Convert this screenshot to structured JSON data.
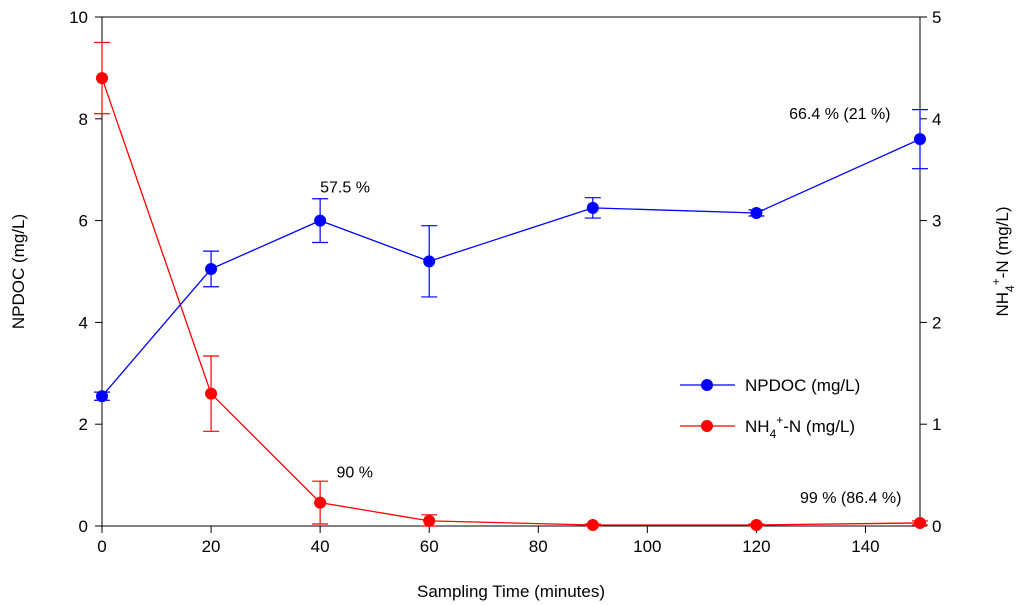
{
  "chart_data": {
    "type": "line",
    "xlabel": "Sampling Time (minutes)",
    "ylabel_left": "NPDOC (mg/L)",
    "ylabel_right": {
      "main": "NH",
      "sub": "4",
      "sup": "+",
      "rest": "-N (mg/L)"
    },
    "xlim": [
      0,
      150
    ],
    "ylim_left": [
      0,
      10
    ],
    "ylim_right": [
      0,
      5
    ],
    "x_ticks": [
      0,
      20,
      40,
      60,
      80,
      100,
      120,
      140
    ],
    "y_ticks_left": [
      0,
      2,
      4,
      6,
      8,
      10
    ],
    "y_ticks_right": [
      0,
      1,
      2,
      3,
      4,
      5
    ],
    "grid": false,
    "legend_position": "right-lower",
    "series": [
      {
        "name": "NPDOC (mg/L)",
        "axis": "left",
        "color": "#0000ff",
        "x": [
          0,
          20,
          40,
          60,
          90,
          120,
          150
        ],
        "y": [
          2.55,
          5.05,
          6.0,
          5.2,
          6.25,
          6.15,
          7.6
        ],
        "err": [
          0.08,
          0.35,
          0.43,
          0.7,
          0.2,
          0.06,
          0.58
        ]
      },
      {
        "name": "NH4+-N (mg/L)",
        "legend": {
          "main": "NH",
          "sub": "4",
          "sup": "+",
          "rest": "-N (mg/L)"
        },
        "axis": "right",
        "color": "#ff0000",
        "x": [
          0,
          20,
          40,
          60,
          90,
          120,
          150
        ],
        "y": [
          4.4,
          1.3,
          0.23,
          0.05,
          0.01,
          0.01,
          0.03
        ],
        "err": [
          0.35,
          0.37,
          0.21,
          0.06,
          0.01,
          0.01,
          0.02
        ]
      }
    ],
    "annotations": [
      {
        "text": "57.5 %",
        "x": 40,
        "y": 6.55,
        "axis": "left"
      },
      {
        "text": "66.4 % (21 %)",
        "x": 126,
        "y": 8.0,
        "axis": "left"
      },
      {
        "text": "90 %",
        "x": 43,
        "y": 0.95,
        "axis": "left"
      },
      {
        "text": "99 % (86.4 %)",
        "x": 128,
        "y": 0.45,
        "axis": "left"
      }
    ]
  }
}
